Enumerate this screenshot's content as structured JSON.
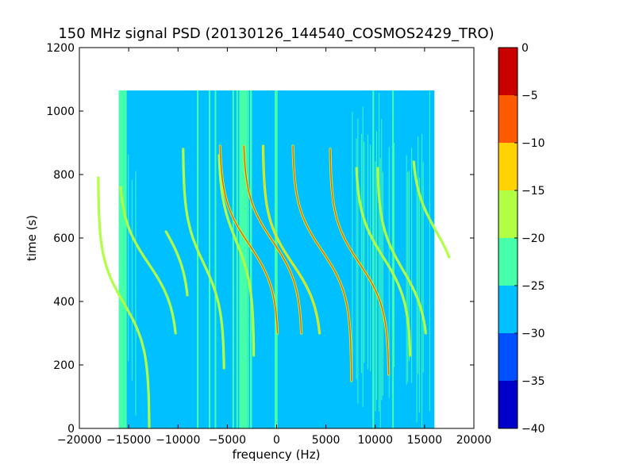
{
  "chart_data": {
    "type": "heatmap",
    "title": "150 MHz signal PSD (20130126_144540_COSMOS2429_TRO)",
    "xlabel": "frequency (Hz)",
    "ylabel": "time (s)",
    "xlim": [
      -20000,
      20000
    ],
    "ylim": [
      0,
      1200
    ],
    "xticks": [
      -20000,
      -15000,
      -10000,
      -5000,
      0,
      5000,
      10000,
      15000,
      20000
    ],
    "yticks": [
      0,
      200,
      400,
      600,
      800,
      1000,
      1200
    ],
    "xtick_labels": [
      "−20000",
      "−15000",
      "−10000",
      "−5000",
      "0",
      "5000",
      "10000",
      "15000",
      "20000"
    ],
    "ytick_labels": [
      "0",
      "200",
      "400",
      "600",
      "800",
      "1000",
      "1200"
    ],
    "data_extent": {
      "x": [
        -16000,
        16000
      ],
      "y": [
        0,
        1065
      ]
    },
    "background_level": -27.5,
    "noise_bands": [
      {
        "x": [
          -16000,
          -15200
        ],
        "level": -22.5
      },
      {
        "x": [
          -15200,
          -14200
        ],
        "level": -27.5,
        "speckled": true
      },
      {
        "x": [
          -3800,
          -3000
        ],
        "level": -22.5
      },
      {
        "x": [
          -2700,
          -2500
        ],
        "level": -22.5
      },
      {
        "x": [
          -200,
          100
        ],
        "level": -22.5
      },
      {
        "x": [
          7500,
          8200
        ],
        "level": -27.5,
        "speckled": true
      },
      {
        "x": [
          8200,
          12000
        ],
        "level": -27.5,
        "speckled": true
      },
      {
        "x": [
          13000,
          16000
        ],
        "level": -22.5,
        "speckled": true
      }
    ],
    "vertical_lines": [
      {
        "x": -8000,
        "level": -22.5
      },
      {
        "x": -6800,
        "level": -22.5
      },
      {
        "x": -6200,
        "level": -22.5
      },
      {
        "x": -4400,
        "level": -22.5
      },
      {
        "x": -4000,
        "level": -22.5
      },
      {
        "x": -2900,
        "level": -22.5
      },
      {
        "x": 9800,
        "level": -22.5
      },
      {
        "x": 11800,
        "level": -22.5
      }
    ],
    "doppler_tracks": [
      {
        "f_center": -15500,
        "t_center": 395,
        "amplitude": 2600,
        "t_start": 0,
        "t_end": 790,
        "level": -17.5
      },
      {
        "f_center": -13000,
        "t_center": 520,
        "amplitude": 3000,
        "t_start": 300,
        "t_end": 760,
        "level": -17.5
      },
      {
        "f_center": -11300,
        "t_center": 625,
        "amplitude": 2500,
        "t_start": 420,
        "t_end": 620,
        "level": -17.5
      },
      {
        "f_center": -7400,
        "t_center": 520,
        "amplitude": 2100,
        "t_start": 190,
        "t_end": 880,
        "level": -17.5
      },
      {
        "f_center": -4100,
        "t_center": 590,
        "amplitude": 1800,
        "t_start": 230,
        "t_end": 860,
        "level": -17.5
      },
      {
        "f_center": -2800,
        "t_center": 580,
        "amplitude": 3000,
        "t_start": 300,
        "t_end": 890,
        "level": -7.5
      },
      {
        "f_center": -400,
        "t_center": 590,
        "amplitude": 3000,
        "t_start": 300,
        "t_end": 890,
        "level": -7.5
      },
      {
        "f_center": 1600,
        "t_center": 520,
        "amplitude": 3000,
        "t_start": 300,
        "t_end": 890,
        "level": -12.5
      },
      {
        "f_center": 4600,
        "t_center": 560,
        "amplitude": 3000,
        "t_start": 150,
        "t_end": 890,
        "level": -7.5
      },
      {
        "f_center": 8400,
        "t_center": 520,
        "amplitude": 3000,
        "t_start": 170,
        "t_end": 880,
        "level": -7.5
      },
      {
        "f_center": 10800,
        "t_center": 540,
        "amplitude": 2800,
        "t_start": 230,
        "t_end": 820,
        "level": -17.5
      },
      {
        "f_center": 12800,
        "t_center": 500,
        "amplitude": 2600,
        "t_start": 300,
        "t_end": 820,
        "level": -17.5
      },
      {
        "f_center": 16200,
        "t_center": 620,
        "amplitude": 2500,
        "t_start": 540,
        "t_end": 840,
        "level": -17.5
      }
    ],
    "colorbar": {
      "range": [
        -40,
        0
      ],
      "ticks": [
        0,
        -5,
        -10,
        -15,
        -20,
        -25,
        -30,
        -35,
        -40
      ],
      "tick_labels": [
        "0",
        "−5",
        "−10",
        "−15",
        "−20",
        "−25",
        "−30",
        "−35",
        "−40"
      ],
      "bands": [
        {
          "from": -40,
          "to": -35,
          "color": "#0000c8"
        },
        {
          "from": -35,
          "to": -30,
          "color": "#0050ff"
        },
        {
          "from": -30,
          "to": -25,
          "color": "#00c0ff"
        },
        {
          "from": -25,
          "to": -20,
          "color": "#45ffaa"
        },
        {
          "from": -20,
          "to": -15,
          "color": "#b0ff45"
        },
        {
          "from": -15,
          "to": -10,
          "color": "#ffd200"
        },
        {
          "from": -10,
          "to": -5,
          "color": "#ff5a00"
        },
        {
          "from": -5,
          "to": 0,
          "color": "#c80000"
        }
      ]
    },
    "grid": false
  }
}
